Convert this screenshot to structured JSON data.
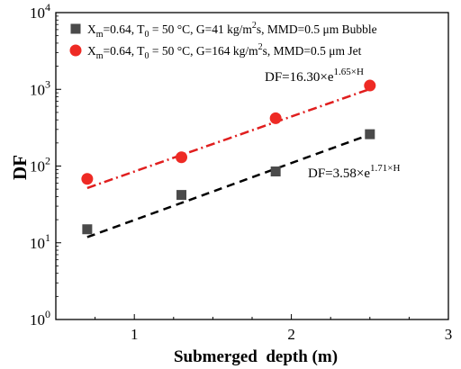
{
  "chart_data": {
    "type": "scatter",
    "xlabel": "Submerged  depth (m)",
    "ylabel": "DF",
    "xlim": [
      0.5,
      3.0
    ],
    "ylim": [
      1,
      10000
    ],
    "y_scale": "log",
    "x_ticks": [
      1,
      2,
      3
    ],
    "x_tick_labels": [
      "1",
      "2",
      "3"
    ],
    "y_ticks": [
      1,
      10,
      100,
      1000,
      10000
    ],
    "y_tick_labels": [
      {
        "base": "10",
        "exp": "0"
      },
      {
        "base": "10",
        "exp": "1"
      },
      {
        "base": "10",
        "exp": "2"
      },
      {
        "base": "10",
        "exp": "3"
      },
      {
        "base": "10",
        "exp": "4"
      }
    ],
    "grid": false,
    "legend_position": "top-left",
    "series": [
      {
        "name": "Xm=0.64, T0 = 50 °C,  G=41 kg/m2s, MMD=0.5 μm  Bubble",
        "legend_parts": {
          "x": "X",
          "x_sub": "m",
          "a": "=0.64, T",
          "t_sub": "0",
          "b": " = 50 °C,  G=41 kg/m",
          "m_sup": "2",
          "c": "s, MMD=0.5 μm  Bubble"
        },
        "marker": "square",
        "color": "#4a4a4a",
        "x": [
          0.7,
          1.3,
          1.9,
          2.5
        ],
        "y": [
          15,
          42,
          85,
          260
        ],
        "fit": {
          "a": 3.58,
          "b": 1.71,
          "x_range": [
            0.7,
            2.5
          ],
          "style": "dash",
          "color": "#000000",
          "label_prefix": "DF=3.58×e",
          "label_sup": "1.71×H"
        }
      },
      {
        "name": "Xm=0.64, T0 = 50 °C,  G=164 kg/m2s, MMD=0.5 μm  Jet",
        "legend_parts": {
          "x": "X",
          "x_sub": "m",
          "a": "=0.64, T",
          "t_sub": "0",
          "b": " = 50 °C,  G=164 kg/m",
          "m_sup": "2",
          "c": "s, MMD=0.5 μm  Jet"
        },
        "marker": "circle",
        "color": "#ee2a24",
        "x": [
          0.7,
          1.3,
          1.9,
          2.5
        ],
        "y": [
          68,
          130,
          420,
          1120
        ],
        "fit": {
          "a": 16.3,
          "b": 1.65,
          "x_range": [
            0.7,
            2.5
          ],
          "style": "dashdot",
          "color": "#e01e1e",
          "label_prefix": "DF=16.30×e",
          "label_sup": "1.65×H"
        }
      }
    ]
  }
}
